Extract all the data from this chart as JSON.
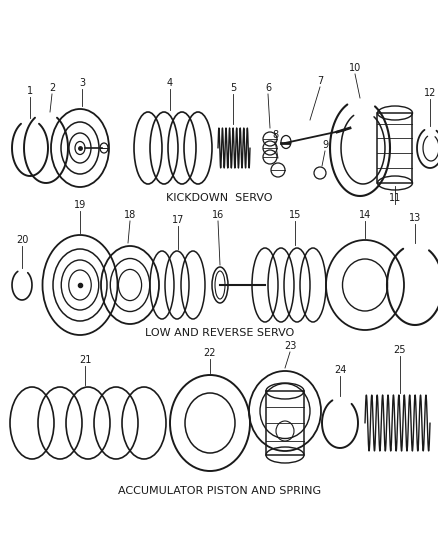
{
  "bg_color": "#ffffff",
  "line_color": "#1a1a1a",
  "section1_label": "KICKDOWN  SERVO",
  "section2_label": "LOW AND REVERSE SERVO",
  "section3_label": "ACCUMULATOR PISTON AND SPRING",
  "figsize": [
    4.39,
    5.33
  ],
  "dpi": 100
}
